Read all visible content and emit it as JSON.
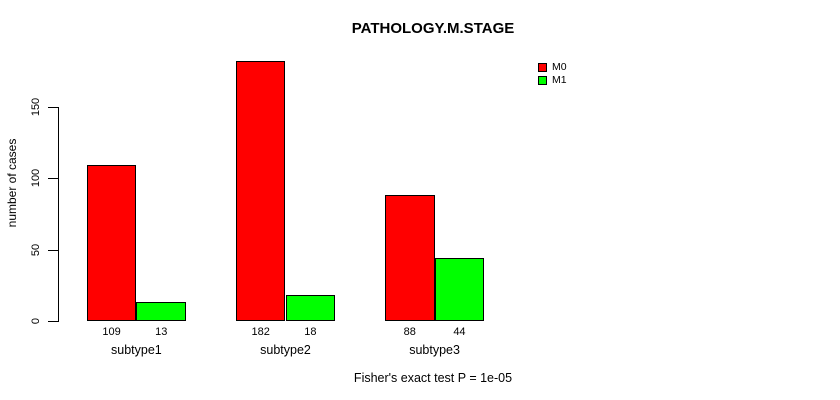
{
  "chart_data": {
    "type": "bar",
    "title": "PATHOLOGY.M.STAGE",
    "ylabel": "number of cases",
    "xlabel": "",
    "categories": [
      "subtype1",
      "subtype2",
      "subtype3"
    ],
    "series": [
      {
        "name": "M0",
        "color": "#ff0000",
        "values": [
          109,
          182,
          88
        ]
      },
      {
        "name": "M1",
        "color": "#00ff00",
        "values": [
          13,
          18,
          44
        ]
      }
    ],
    "yticks": [
      0,
      50,
      100,
      150
    ],
    "ylim": [
      0,
      190
    ],
    "grid": false,
    "legend_position": "top-right",
    "values_shown_under_bars": true,
    "annotation": "Fisher's exact test P = 1e-05"
  },
  "colors": {
    "bar_border": "#000000",
    "axis": "#000000",
    "background": "#ffffff"
  }
}
